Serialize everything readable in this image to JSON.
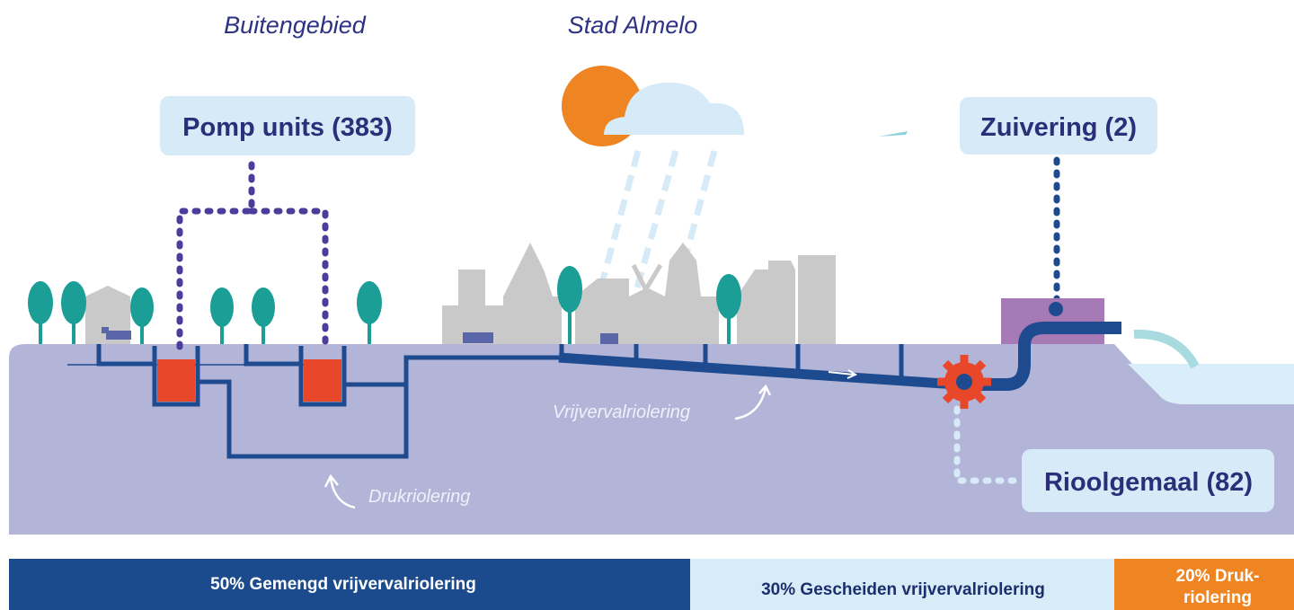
{
  "regions": {
    "rural": "Buitengebied",
    "city": "Stad Almelo"
  },
  "callouts": {
    "pump_units": "Pomp units (383)",
    "treatment": "Zuivering (2)",
    "pumping_station": "Rioolgemaal (82)"
  },
  "pipes": {
    "gravity": "Vrijvervalriolering",
    "pressure": "Drukriolering"
  },
  "bar": {
    "segments": [
      {
        "lines": [
          "50% Gemengd vrijvervalriolering"
        ]
      },
      {
        "lines": [
          "30% Gescheiden vrijvervalriolering"
        ]
      },
      {
        "lines": [
          "20% Druk-",
          "riolering"
        ]
      }
    ]
  }
}
